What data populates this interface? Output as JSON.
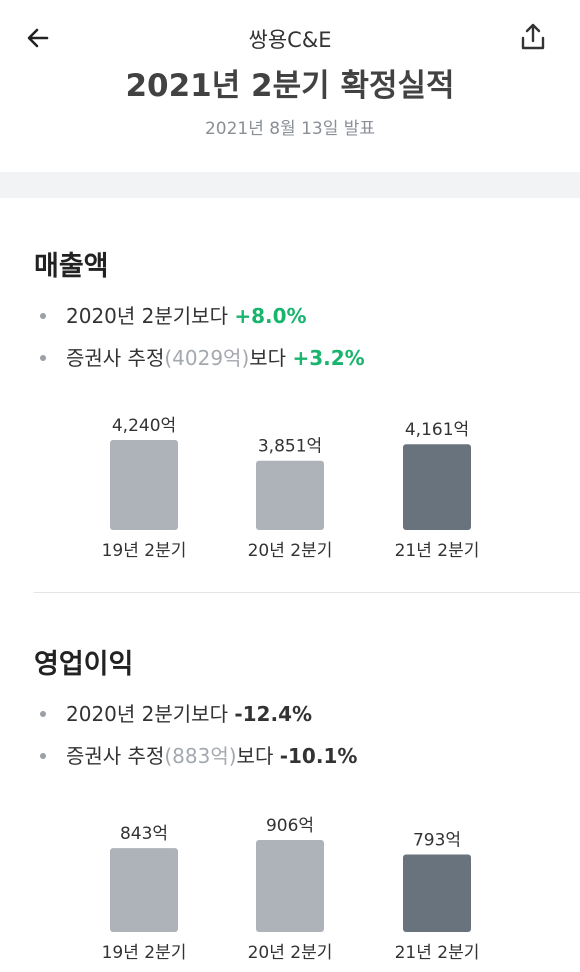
{
  "header": {
    "app_title": "쌍용C&E",
    "report_title": "2021년 2분기 확정실적",
    "report_date": "2021년 8월 13일 발표",
    "back_icon": "arrow-left-icon",
    "share_icon": "share-upload-icon"
  },
  "colors": {
    "accent_positive": "#19b46d",
    "bar_past": "#adb3b9",
    "bar_current": "#68737e"
  },
  "revenue": {
    "title": "매출액",
    "bullets": [
      {
        "prefix": "2020년 2분기보다 ",
        "value": "+8.0%"
      },
      {
        "prefix": "증권사 추정",
        "paren": "(4029억)",
        "suffix": "보다 ",
        "value": "+3.2%"
      }
    ]
  },
  "operating_profit": {
    "title": "영업이익",
    "bullets": [
      {
        "prefix": "2020년 2분기보다 ",
        "value": "-12.4%"
      },
      {
        "prefix": "증권사 추정",
        "paren": "(883억)",
        "suffix": "보다 ",
        "value": "-10.1%"
      }
    ]
  },
  "chart_data": [
    {
      "type": "bar",
      "title": "매출액",
      "categories": [
        "19년 2분기",
        "20년 2분기",
        "21년 2분기"
      ],
      "values": [
        4240,
        3851,
        4161
      ],
      "value_labels": [
        "4,240억",
        "3,851억",
        "4,161억"
      ],
      "highlight_index": 2,
      "grid": false
    },
    {
      "type": "bar",
      "title": "영업이익",
      "categories": [
        "19년 2분기",
        "20년 2분기",
        "21년 2분기"
      ],
      "values": [
        843,
        906,
        793
      ],
      "value_labels": [
        "843억",
        "906억",
        "793억"
      ],
      "highlight_index": 2,
      "grid": false
    }
  ]
}
